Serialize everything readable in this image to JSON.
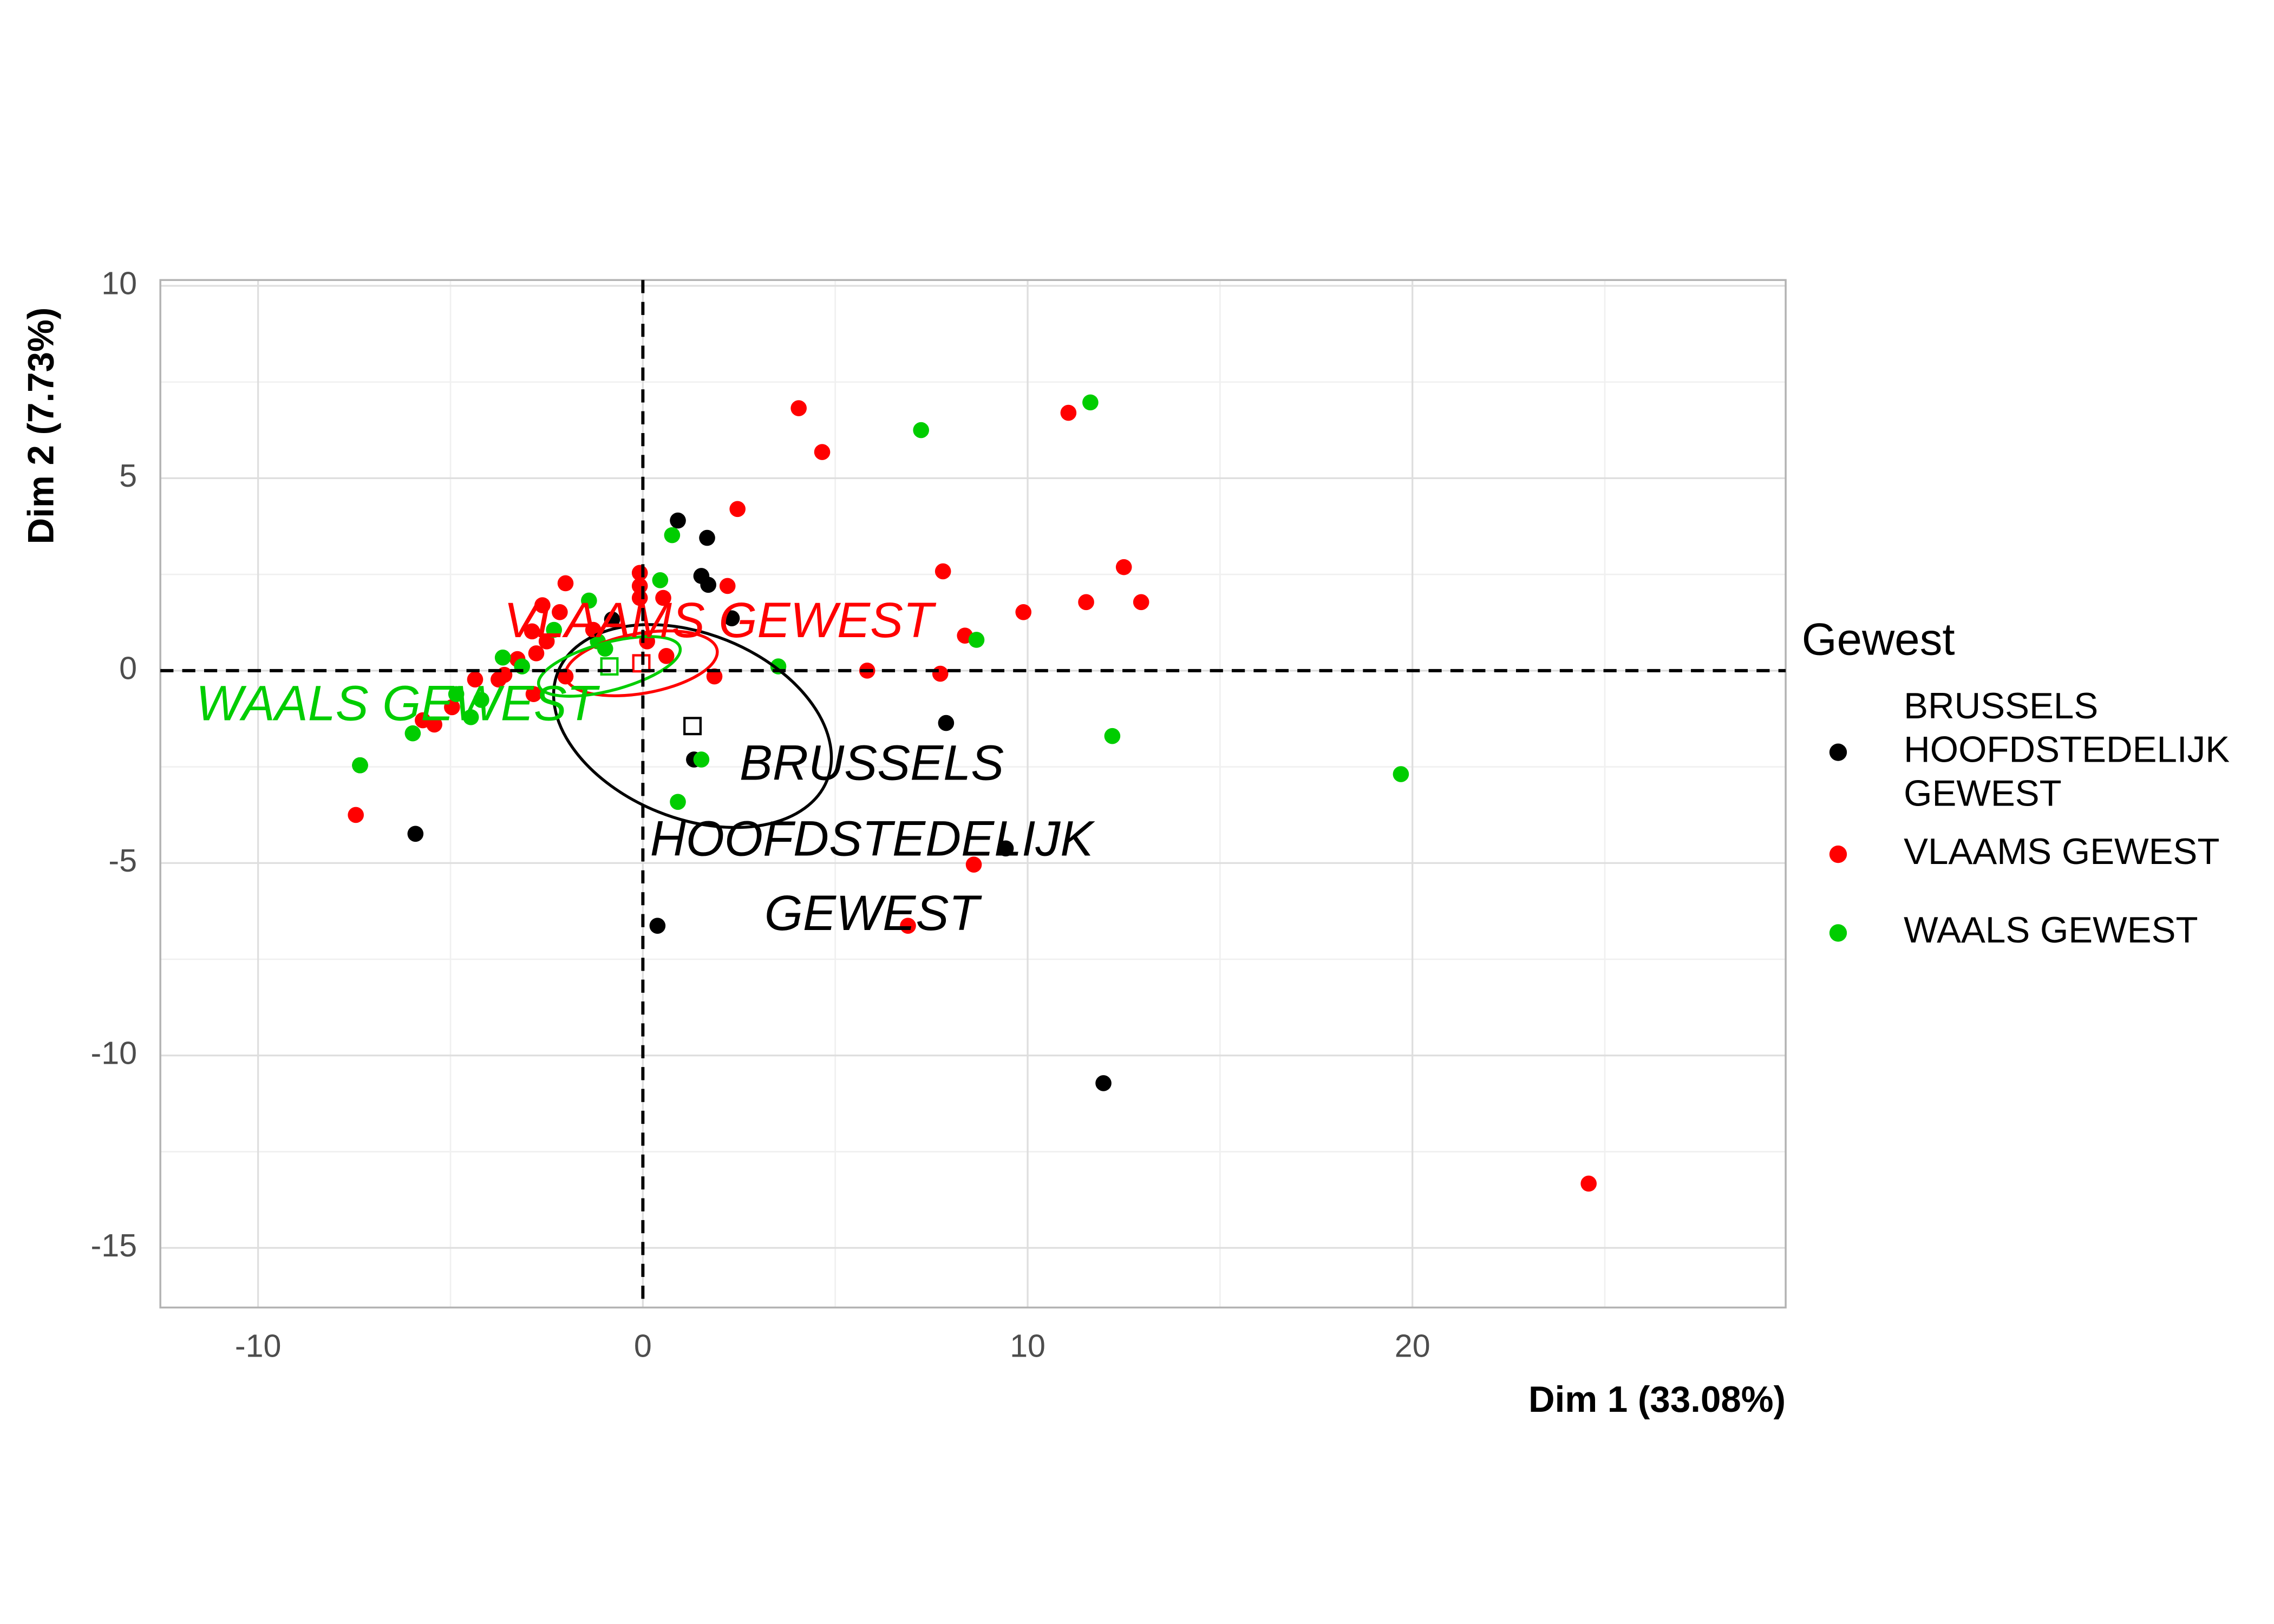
{
  "chart_data": {
    "type": "scatter",
    "x_label": "Dim 1 (33.08%)",
    "y_label": "Dim 2 (7.73%)",
    "legend_title": "Gewest",
    "legend_position": "right",
    "grid": true,
    "xlim": [
      -12.54,
      29.7
    ],
    "ylim": [
      -16.55,
      10.15
    ],
    "xticks": [
      -10,
      0,
      10,
      20
    ],
    "yticks": [
      -15,
      -10,
      -5,
      0,
      5,
      10
    ],
    "series": [
      {
        "name": "BRUSSELS HOOFDSTEDELIJK GEWEST",
        "color": "#000000",
        "x": [
          0.91,
          1.67,
          1.52,
          1.7,
          2.31,
          -0.8,
          7.88,
          1.33,
          -7.35,
          -5.91,
          9.43,
          0.38,
          11.97
        ],
        "y": [
          3.9,
          3.45,
          2.46,
          2.23,
          1.36,
          1.33,
          -1.36,
          -2.31,
          -2.46,
          -4.24,
          -4.62,
          -6.63,
          -10.72
        ],
        "center": {
          "x": 1.29,
          "y": -1.44
        },
        "ellipse": {
          "rx": 3.77,
          "ry": 2.4,
          "angle": 22
        }
      },
      {
        "name": "VLAAMS GEWEST",
        "color": "#ff0000",
        "x": [
          4.05,
          4.66,
          11.06,
          2.46,
          7.8,
          12.5,
          12.95,
          11.52,
          9.89,
          8.37,
          7.73,
          5.83,
          2.2,
          -0.08,
          -0.08,
          -0.08,
          0.53,
          -2.01,
          -2.61,
          -2.16,
          -2.88,
          -2.5,
          -2.77,
          -3.26,
          -3.6,
          -3.75,
          -4.36,
          -2.84,
          -2.01,
          0.61,
          1.86,
          -4.96,
          -5.42,
          -5.72,
          -7.46,
          8.6,
          6.89,
          24.58,
          0.11,
          -1.29
        ],
        "y": [
          6.82,
          5.68,
          6.7,
          4.2,
          2.58,
          2.69,
          1.78,
          1.78,
          1.52,
          0.91,
          -0.08,
          0,
          2.2,
          2.54,
          2.2,
          1.89,
          1.89,
          2.27,
          1.7,
          1.52,
          1.02,
          0.76,
          0.45,
          0.3,
          -0.11,
          -0.23,
          -0.23,
          -0.61,
          -0.15,
          0.38,
          -0.15,
          -0.95,
          -1.4,
          -1.29,
          -3.75,
          -5.04,
          -6.63,
          -13.33,
          0.76,
          1.06
        ],
        "center": {
          "x": -0.04,
          "y": 0.19
        },
        "ellipse": {
          "rx": 2.0,
          "ry": 0.78,
          "angle": -10
        }
      },
      {
        "name": "WAALS GEWEST",
        "color": "#00cd00",
        "x": [
          11.63,
          7.23,
          0.76,
          0.45,
          -1.4,
          8.67,
          3.52,
          12.2,
          19.7,
          1.52,
          0.91,
          -7.35,
          -5.98,
          -4.47,
          -4.85,
          -4.2,
          -3.64,
          -3.14,
          -2.31,
          -1.17,
          -0.98
        ],
        "y": [
          6.97,
          6.25,
          3.52,
          2.35,
          1.82,
          0.8,
          0.11,
          -1.7,
          -2.69,
          -2.31,
          -3.41,
          -2.46,
          -1.63,
          -1.21,
          -0.61,
          -0.76,
          0.34,
          0.11,
          1.06,
          0.76,
          0.57
        ],
        "center": {
          "x": -0.87,
          "y": 0.11
        },
        "ellipse": {
          "rx": 1.9,
          "ry": 0.62,
          "angle": -15
        }
      }
    ]
  }
}
